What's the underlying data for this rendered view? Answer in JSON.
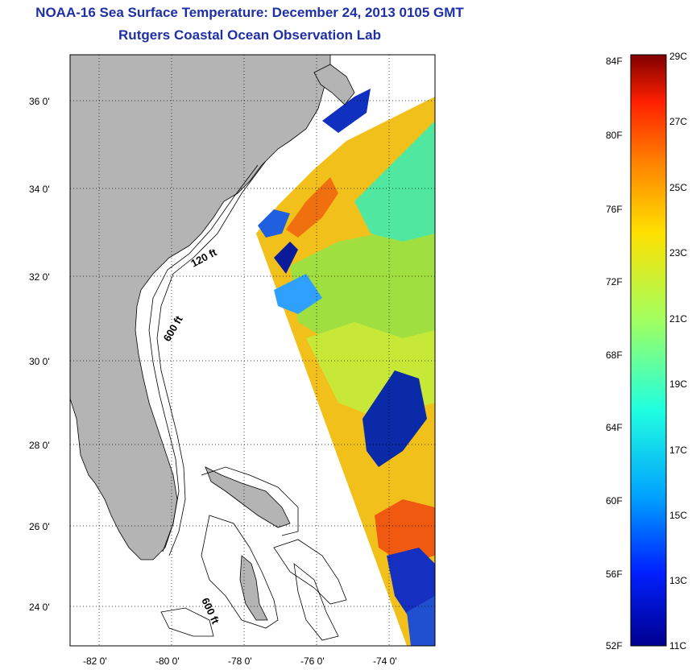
{
  "header": {
    "title": "NOAA-16 Sea Surface Temperature:  December 24, 2013 0105 GMT",
    "subtitle": "Rutgers Coastal Ocean Observation Lab"
  },
  "map": {
    "lon_ticks": [
      "-82 0'",
      "-80 0'",
      "-78 0'",
      "-76 0'",
      "-74 0'"
    ],
    "lat_ticks": [
      "36 0'",
      "34 0'",
      "32 0'",
      "30 0'",
      "28 0'",
      "26 0'",
      "24 0'"
    ],
    "contour_labels": [
      "120 ft",
      "600 ft",
      "600 ft"
    ],
    "land_color": "#b4b4b4",
    "grid": true
  },
  "colorbar": {
    "f_labels": [
      "84F",
      "80F",
      "76F",
      "72F",
      "68F",
      "64F",
      "60F",
      "56F",
      "52F"
    ],
    "c_labels": [
      "29C",
      "27C",
      "25C",
      "23C",
      "21C",
      "19C",
      "17C",
      "15C",
      "13C",
      "11C"
    ],
    "colors": [
      "#00008f",
      "#0020ff",
      "#00a0ff",
      "#20ffe0",
      "#a0ff60",
      "#ffe000",
      "#ff8000",
      "#ff2000",
      "#800000"
    ]
  }
}
